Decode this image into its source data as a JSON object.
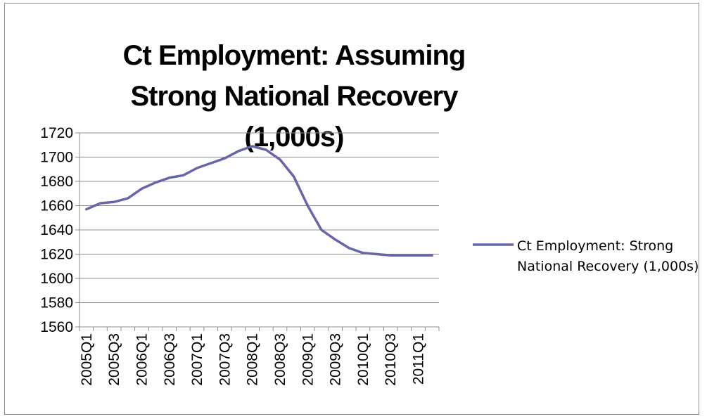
{
  "chart_data": {
    "type": "line",
    "title": "Ct Employment: Assuming Strong National Recovery (1,000s)",
    "xlabel": "",
    "ylabel": "",
    "ylim": [
      1560,
      1720
    ],
    "yticks": [
      1560,
      1580,
      1600,
      1620,
      1640,
      1660,
      1680,
      1700,
      1720
    ],
    "x": [
      "2005Q1",
      "2005Q2",
      "2005Q3",
      "2005Q4",
      "2006Q1",
      "2006Q2",
      "2006Q3",
      "2006Q4",
      "2007Q1",
      "2007Q2",
      "2007Q3",
      "2007Q4",
      "2008Q1",
      "2008Q2",
      "2008Q3",
      "2008Q4",
      "2009Q1",
      "2009Q2",
      "2009Q3",
      "2009Q4",
      "2010Q1",
      "2010Q2",
      "2010Q3",
      "2010Q4",
      "2011Q1",
      "2011Q2"
    ],
    "xtick_labels": [
      "2005Q1",
      "2005Q3",
      "2006Q1",
      "2006Q3",
      "2007Q1",
      "2007Q3",
      "2008Q1",
      "2008Q3",
      "2009Q1",
      "2009Q3",
      "2010Q1",
      "2010Q3",
      "2011Q1"
    ],
    "series": [
      {
        "name": "Ct Employment: Strong National Recovery (1,000s)",
        "color": "#6666a8",
        "values": [
          1657,
          1662,
          1663,
          1666,
          1674,
          1679,
          1683,
          1685,
          1691,
          1695,
          1699,
          1705,
          1709,
          1706,
          1698,
          1684,
          1660,
          1640,
          1632,
          1625,
          1621,
          1620,
          1619,
          1619,
          1619,
          1619
        ]
      }
    ],
    "grid": "horizontal",
    "legend_position": "right"
  }
}
